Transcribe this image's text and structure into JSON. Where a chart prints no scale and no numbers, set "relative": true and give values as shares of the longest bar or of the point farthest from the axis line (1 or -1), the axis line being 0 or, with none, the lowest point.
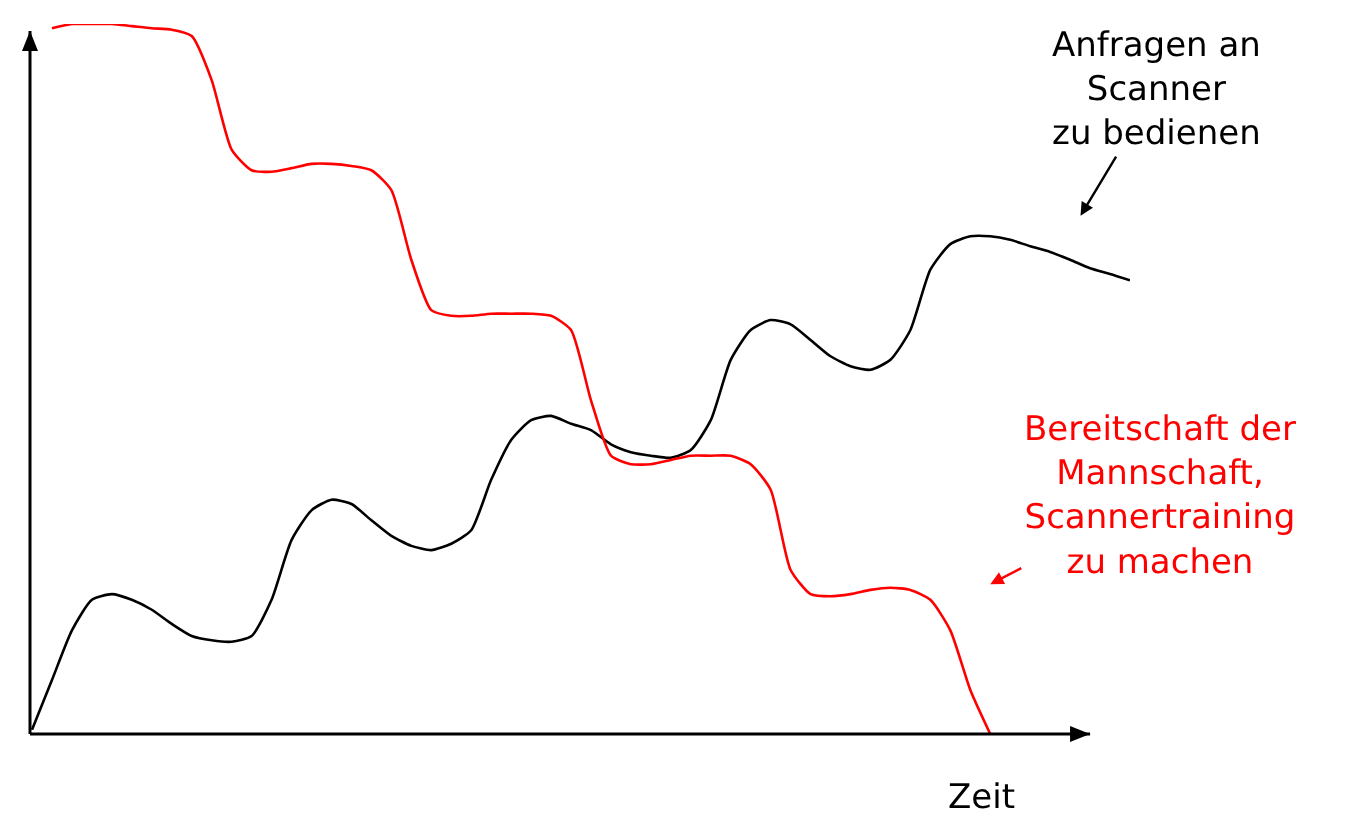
{
  "chart_data": {
    "type": "line",
    "relative": true,
    "xlabel": "Zeit",
    "legend": false,
    "grid": false,
    "categories": [
      null,
      null,
      null,
      null,
      null,
      null,
      null,
      null,
      null,
      null,
      null,
      null,
      null,
      null,
      null,
      null,
      null,
      null,
      null,
      null,
      null,
      null,
      null,
      null,
      null,
      null,
      null,
      null,
      null,
      null,
      null,
      null,
      null,
      null,
      null,
      null,
      null,
      null,
      null,
      null,
      null,
      null,
      null,
      null,
      null,
      null,
      null,
      null,
      null,
      null,
      null,
      null,
      null,
      null,
      null,
      null
    ],
    "series": [
      {
        "color": "#000000",
        "values": [
          0.006,
          0.076,
          0.146,
          0.189,
          0.197,
          0.189,
          0.175,
          0.155,
          0.138,
          0.132,
          0.13,
          0.138,
          0.189,
          0.273,
          0.315,
          0.33,
          0.324,
          0.301,
          0.279,
          0.265,
          0.259,
          0.268,
          0.287,
          0.358,
          0.414,
          0.442,
          0.448,
          0.437,
          0.428,
          0.408,
          0.397,
          0.392,
          0.389,
          0.4,
          0.442,
          0.527,
          0.569,
          0.583,
          0.577,
          0.555,
          0.532,
          0.518,
          0.513,
          0.527,
          0.569,
          0.654,
          0.69,
          0.701,
          0.701,
          0.696,
          0.687,
          0.679,
          0.668,
          0.656,
          0.648,
          0.639
        ]
      },
      {
        "color": "#ff0000",
        "values": [
          null,
          0.994,
          1.0,
          1.0,
          1.0,
          0.997,
          0.994,
          0.992,
          0.983,
          0.921,
          0.823,
          0.794,
          0.792,
          0.797,
          0.803,
          0.803,
          0.8,
          0.794,
          0.766,
          0.668,
          0.597,
          0.589,
          0.589,
          0.592,
          0.592,
          0.592,
          0.589,
          0.569,
          0.47,
          0.392,
          0.38,
          0.38,
          0.386,
          0.392,
          0.392,
          0.392,
          0.38,
          0.344,
          0.231,
          0.197,
          0.194,
          0.197,
          0.203,
          0.206,
          0.203,
          0.189,
          0.146,
          0.062,
          0.0,
          null,
          null,
          null,
          null,
          null,
          null,
          null
        ]
      }
    ],
    "annotations": [
      "Anfragen an\nScanner\nzu bedienen",
      "Bereitschaft der\nMannschaft,\nScannertraining\nzu machen"
    ]
  }
}
